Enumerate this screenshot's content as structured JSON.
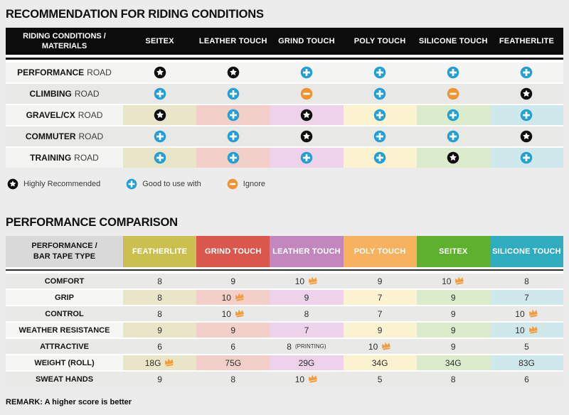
{
  "icons": {
    "star_bg": "#0e0e0e",
    "plus_bg": "#229fd4",
    "minus_bg": "#ef9333",
    "crown": "#f29b38"
  },
  "chart_data": [
    {
      "type": "table",
      "title": "RECOMMENDATION FOR RIDING CONDITIONS",
      "corner_header": [
        "RIDING CONDITIONS /",
        "MATERIALS"
      ],
      "columns": [
        "SEITEX",
        "LEATHER TOUCH",
        "GRIND TOUCH",
        "POLY TOUCH",
        "SILICONE TOUCH",
        "FEATHERLITE"
      ],
      "column_tints": [
        "#e9e5c8",
        "#f3cfc9",
        "#edd2e9",
        "#fbf2d0",
        "#daeccb",
        "#cee8eb"
      ],
      "rows": [
        {
          "label": "PERFORMANCE ROAD",
          "colored": false,
          "icons": [
            "star",
            "star",
            "plus",
            "plus",
            "plus",
            "plus"
          ]
        },
        {
          "label": "CLIMBING ROAD",
          "colored": false,
          "icons": [
            "plus",
            "plus",
            "minus",
            "plus",
            "minus",
            "star"
          ]
        },
        {
          "label": "GRAVEL/CX ROAD",
          "colored": true,
          "icons": [
            "star",
            "plus",
            "star",
            "plus",
            "plus",
            "plus"
          ]
        },
        {
          "label": "COMMUTER ROAD",
          "colored": false,
          "icons": [
            "plus",
            "plus",
            "star",
            "plus",
            "plus",
            "star"
          ]
        },
        {
          "label": "TRAINING ROAD",
          "colored": true,
          "icons": [
            "plus",
            "plus",
            "plus",
            "plus",
            "star",
            "plus"
          ]
        }
      ],
      "legend": [
        {
          "icon": "star",
          "label": "Highly Recommended"
        },
        {
          "icon": "plus",
          "label": "Good to use with"
        },
        {
          "icon": "minus",
          "label": "Ignore"
        }
      ]
    },
    {
      "type": "table",
      "title": "PERFORMANCE COMPARISON",
      "corner_header": [
        "PERFORMANCE /",
        "BAR TAPE TYPE"
      ],
      "columns": [
        {
          "label": "FEATHERLITE",
          "color": "#c9c050",
          "tint": "#e9e5c8"
        },
        {
          "label": "GRIND TOUCH",
          "color": "#d9574c",
          "tint": "#f3cfc9"
        },
        {
          "label": "LEATHER TOUCH",
          "color": "#c287bd",
          "tint": "#edd2e9"
        },
        {
          "label": "POLY TOUCH",
          "color": "#f6b25e",
          "tint": "#fbf2d0"
        },
        {
          "label": "SEITEX",
          "color": "#5fb02f",
          "tint": "#daeccb"
        },
        {
          "label": "SILICONE TOUCH",
          "color": "#2fadbe",
          "tint": "#cee8eb"
        }
      ],
      "rows": [
        {
          "label": "COMFORT",
          "colored": false,
          "cells": [
            {
              "v": "8"
            },
            {
              "v": "9"
            },
            {
              "v": "10",
              "crown": true
            },
            {
              "v": "9"
            },
            {
              "v": "10",
              "crown": true
            },
            {
              "v": "8"
            }
          ]
        },
        {
          "label": "GRIP",
          "colored": true,
          "cells": [
            {
              "v": "8"
            },
            {
              "v": "10",
              "crown": true
            },
            {
              "v": "9"
            },
            {
              "v": "7"
            },
            {
              "v": "9"
            },
            {
              "v": "7"
            }
          ]
        },
        {
          "label": "CONTROL",
          "colored": false,
          "cells": [
            {
              "v": "8"
            },
            {
              "v": "10",
              "crown": true
            },
            {
              "v": "8"
            },
            {
              "v": "7"
            },
            {
              "v": "9"
            },
            {
              "v": "10",
              "crown": true
            }
          ]
        },
        {
          "label": "WEATHER RESISTANCE",
          "colored": true,
          "cells": [
            {
              "v": "9"
            },
            {
              "v": "9"
            },
            {
              "v": "7"
            },
            {
              "v": "9"
            },
            {
              "v": "9"
            },
            {
              "v": "10",
              "crown": true
            }
          ]
        },
        {
          "label": "ATTRACTIVE",
          "colored": false,
          "cells": [
            {
              "v": "6"
            },
            {
              "v": "6"
            },
            {
              "v": "8",
              "suffix": "(PRINTING)"
            },
            {
              "v": "10",
              "crown": true
            },
            {
              "v": "9"
            },
            {
              "v": "5"
            }
          ]
        },
        {
          "label": "WEIGHT (ROLL)",
          "colored": true,
          "cells": [
            {
              "v": "18G",
              "crown": true
            },
            {
              "v": "75G"
            },
            {
              "v": "29G"
            },
            {
              "v": "34G"
            },
            {
              "v": "34G"
            },
            {
              "v": "83G"
            }
          ]
        },
        {
          "label": "SWEAT HANDS",
          "colored": false,
          "cells": [
            {
              "v": "9"
            },
            {
              "v": "8"
            },
            {
              "v": "10",
              "crown": true
            },
            {
              "v": "5"
            },
            {
              "v": "8"
            },
            {
              "v": "6"
            }
          ]
        }
      ],
      "remark": "REMARK: A higher score is better"
    }
  ]
}
